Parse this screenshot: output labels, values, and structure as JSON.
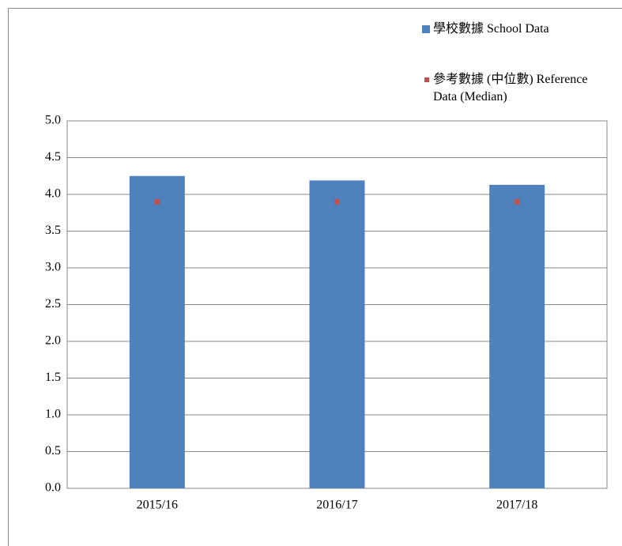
{
  "chart_data": {
    "type": "bar",
    "categories": [
      "2015/16",
      "2016/17",
      "2017/18"
    ],
    "series": [
      {
        "name": "學校數據 School Data",
        "color": "#4f81bd",
        "values": [
          4.25,
          4.19,
          4.13
        ]
      },
      {
        "name": "參考數據 (中位數) Reference Data (Median)",
        "color": "#c0504d",
        "type": "point",
        "values": [
          3.9,
          3.9,
          3.9
        ]
      }
    ],
    "ylim": [
      0,
      5
    ],
    "yticks": [
      {
        "value": 0,
        "label": "0.0"
      },
      0.5,
      {
        "value": 1,
        "label": "1.0"
      },
      1.5,
      {
        "value": 2,
        "label": "2.0"
      },
      2.5,
      {
        "value": 3,
        "label": "3.0"
      },
      3.5,
      {
        "value": 4,
        "label": "4.0"
      },
      4.5,
      {
        "value": 5,
        "label": "5.0"
      }
    ],
    "grid": true
  }
}
